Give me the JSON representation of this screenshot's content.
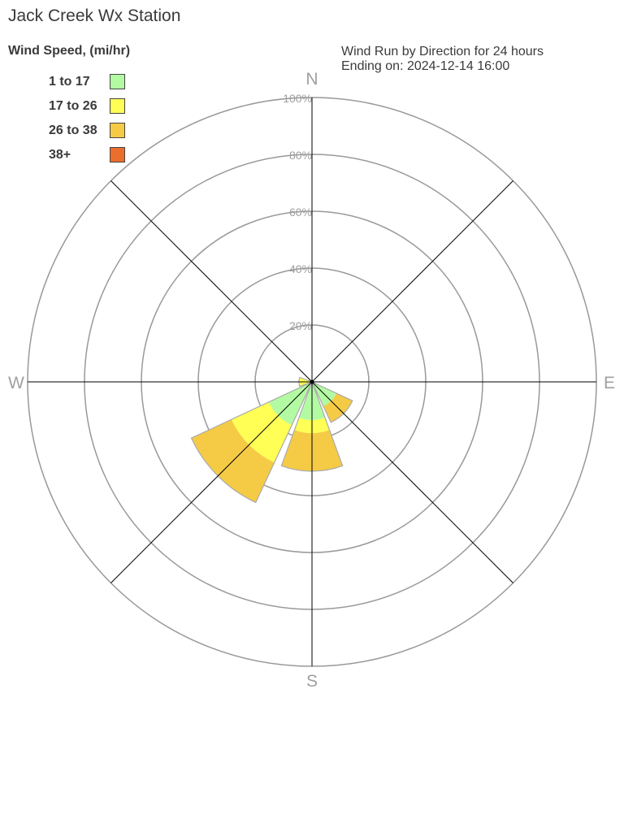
{
  "chart_data": {
    "type": "wind-rose",
    "title": "Jack Creek Wx Station",
    "subtitle": [
      "Wind Run by Direction for 24 hours",
      "Ending on: 2024-12-14 16:00"
    ],
    "legend_title": "Wind Speed, (mi/hr)",
    "legend_placement": "top-left",
    "speed_bins": [
      {
        "label": "1 to 17",
        "color": "#b3fba3"
      },
      {
        "label": "17 to 26",
        "color": "#ffff55"
      },
      {
        "label": "26 to 38",
        "color": "#f5cb45"
      },
      {
        "label": "38+",
        "color": "#ec6e2c"
      }
    ],
    "compass_labels": [
      "N",
      "E",
      "S",
      "W"
    ],
    "radial_ticks": [
      "20%",
      "40%",
      "60%",
      "80%",
      "100%"
    ],
    "radial_range": [
      0,
      100
    ],
    "unit": "percent",
    "directions": [
      {
        "dir": "SE",
        "bearing": 135,
        "values": [
          9.5,
          0,
          6.2,
          0
        ]
      },
      {
        "dir": "S",
        "bearing": 180,
        "values": [
          13.4,
          4.6,
          13.4,
          0
        ]
      },
      {
        "dir": "SW",
        "bearing": 225,
        "values": [
          16.8,
          14.5,
          15.5,
          0
        ]
      },
      {
        "dir": "W",
        "bearing": 270,
        "values": [
          0,
          4.6,
          0,
          0
        ]
      }
    ]
  }
}
